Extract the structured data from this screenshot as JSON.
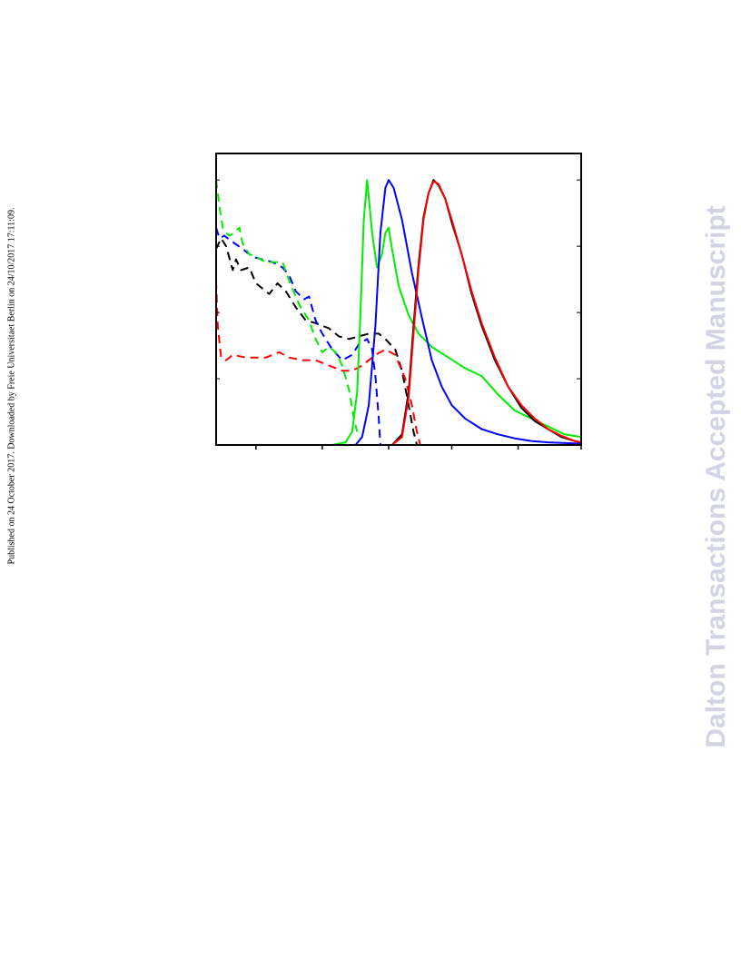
{
  "side_note": "Published on 24 October 2017. Downloaded by Freie Universitaet Berlin on 24/10/2017 17:11:09.",
  "watermark": "Dalton Transactions Accepted Manuscript",
  "chart_data": {
    "type": "line",
    "title": "",
    "xlabel": "",
    "ylabel": "",
    "xlim": [
      0,
      11
    ],
    "ylim": [
      0,
      1.1
    ],
    "x_ticks": [
      1.2,
      3.2,
      5.2,
      7.1,
      9.1,
      11.0
    ],
    "y_ticks": [
      0.25,
      0.5,
      0.75,
      1.0
    ],
    "tick_labels_shown": false,
    "legend": "none",
    "grid": false,
    "colors": {
      "black": "#000000",
      "red": "#ff0000",
      "blue": "#0000ff",
      "green": "#00ee00"
    },
    "series": [
      {
        "color": "#000000",
        "style": "dashed",
        "points": [
          [
            0,
            0.74
          ],
          [
            0.15,
            0.78
          ],
          [
            0.3,
            0.75
          ],
          [
            0.5,
            0.66
          ],
          [
            0.6,
            0.7
          ],
          [
            0.75,
            0.66
          ],
          [
            1,
            0.67
          ],
          [
            1.2,
            0.61
          ],
          [
            1.4,
            0.59
          ],
          [
            1.6,
            0.57
          ],
          [
            1.85,
            0.61
          ],
          [
            2.1,
            0.58
          ],
          [
            2.4,
            0.52
          ],
          [
            2.7,
            0.47
          ],
          [
            3.0,
            0.46
          ],
          [
            3.4,
            0.44
          ],
          [
            3.7,
            0.41
          ],
          [
            4.0,
            0.4
          ],
          [
            4.3,
            0.41
          ],
          [
            4.6,
            0.42
          ],
          [
            4.9,
            0.42
          ],
          [
            5.1,
            0.4
          ],
          [
            5.4,
            0.36
          ],
          [
            5.6,
            0.28
          ],
          [
            5.8,
            0.15
          ],
          [
            5.95,
            0.05
          ],
          [
            6.05,
            0.0
          ]
        ]
      },
      {
        "color": "#ff0000",
        "style": "dashed",
        "points": [
          [
            0,
            0.62
          ],
          [
            0.05,
            0.45
          ],
          [
            0.15,
            0.33
          ],
          [
            0.3,
            0.32
          ],
          [
            0.5,
            0.34
          ],
          [
            0.9,
            0.33
          ],
          [
            1.5,
            0.33
          ],
          [
            1.9,
            0.35
          ],
          [
            2.2,
            0.33
          ],
          [
            2.6,
            0.32
          ],
          [
            3.0,
            0.32
          ],
          [
            3.4,
            0.3
          ],
          [
            3.8,
            0.28
          ],
          [
            4.1,
            0.28
          ],
          [
            4.4,
            0.3
          ],
          [
            4.8,
            0.34
          ],
          [
            5.1,
            0.36
          ],
          [
            5.4,
            0.34
          ],
          [
            5.7,
            0.25
          ],
          [
            5.9,
            0.15
          ],
          [
            6.05,
            0.05
          ],
          [
            6.15,
            0.0
          ]
        ]
      },
      {
        "color": "#0000ff",
        "style": "dashed",
        "points": [
          [
            0,
            0.82
          ],
          [
            0.1,
            0.78
          ],
          [
            0.25,
            0.79
          ],
          [
            0.45,
            0.77
          ],
          [
            0.8,
            0.74
          ],
          [
            1.1,
            0.71
          ],
          [
            1.4,
            0.7
          ],
          [
            1.7,
            0.69
          ],
          [
            1.85,
            0.68
          ],
          [
            2.0,
            0.67
          ],
          [
            2.2,
            0.64
          ],
          [
            2.4,
            0.58
          ],
          [
            2.65,
            0.55
          ],
          [
            2.8,
            0.56
          ],
          [
            3.0,
            0.47
          ],
          [
            3.2,
            0.42
          ],
          [
            3.5,
            0.36
          ],
          [
            3.8,
            0.32
          ],
          [
            4.1,
            0.34
          ],
          [
            4.3,
            0.38
          ],
          [
            4.55,
            0.4
          ],
          [
            4.7,
            0.36
          ],
          [
            4.8,
            0.26
          ],
          [
            4.9,
            0.1
          ],
          [
            4.95,
            0.0
          ]
        ]
      },
      {
        "color": "#00ee00",
        "style": "dashed",
        "points": [
          [
            0,
            1.0
          ],
          [
            0.1,
            0.9
          ],
          [
            0.2,
            0.82
          ],
          [
            0.3,
            0.8
          ],
          [
            0.4,
            0.79
          ],
          [
            0.55,
            0.8
          ],
          [
            0.7,
            0.82
          ],
          [
            0.8,
            0.76
          ],
          [
            1.0,
            0.72
          ],
          [
            1.2,
            0.71
          ],
          [
            1.5,
            0.69
          ],
          [
            1.8,
            0.69
          ],
          [
            2.0,
            0.69
          ],
          [
            2.2,
            0.62
          ],
          [
            2.5,
            0.53
          ],
          [
            2.8,
            0.47
          ],
          [
            3.0,
            0.4
          ],
          [
            3.2,
            0.35
          ],
          [
            3.4,
            0.37
          ],
          [
            3.6,
            0.35
          ],
          [
            3.8,
            0.3
          ],
          [
            4.0,
            0.21
          ],
          [
            4.15,
            0.1
          ],
          [
            4.25,
            0.05
          ]
        ]
      },
      {
        "color": "#00ee00",
        "style": "solid",
        "points": [
          [
            2.5,
            0.0
          ],
          [
            3.5,
            0.0
          ],
          [
            3.9,
            0.01
          ],
          [
            4.1,
            0.05
          ],
          [
            4.25,
            0.2
          ],
          [
            4.35,
            0.5
          ],
          [
            4.45,
            0.85
          ],
          [
            4.55,
            1.0
          ],
          [
            4.7,
            0.8
          ],
          [
            4.85,
            0.67
          ],
          [
            5.0,
            0.72
          ],
          [
            5.1,
            0.8
          ],
          [
            5.2,
            0.82
          ],
          [
            5.3,
            0.74
          ],
          [
            5.5,
            0.6
          ],
          [
            5.8,
            0.49
          ],
          [
            6.1,
            0.42
          ],
          [
            6.5,
            0.37
          ],
          [
            7.0,
            0.33
          ],
          [
            7.5,
            0.29
          ],
          [
            8.0,
            0.26
          ],
          [
            8.5,
            0.19
          ],
          [
            9.0,
            0.13
          ],
          [
            9.5,
            0.1
          ],
          [
            10.0,
            0.07
          ],
          [
            10.5,
            0.04
          ],
          [
            11.0,
            0.03
          ]
        ]
      },
      {
        "color": "#0000ff",
        "style": "solid",
        "points": [
          [
            3.9,
            0.0
          ],
          [
            4.2,
            0.0
          ],
          [
            4.4,
            0.03
          ],
          [
            4.6,
            0.15
          ],
          [
            4.8,
            0.45
          ],
          [
            4.95,
            0.8
          ],
          [
            5.1,
            0.97
          ],
          [
            5.2,
            1.0
          ],
          [
            5.35,
            0.97
          ],
          [
            5.6,
            0.85
          ],
          [
            5.9,
            0.65
          ],
          [
            6.2,
            0.48
          ],
          [
            6.5,
            0.32
          ],
          [
            6.8,
            0.22
          ],
          [
            7.1,
            0.15
          ],
          [
            7.5,
            0.1
          ],
          [
            8.0,
            0.06
          ],
          [
            8.5,
            0.04
          ],
          [
            9.0,
            0.025
          ],
          [
            9.5,
            0.015
          ],
          [
            10.0,
            0.01
          ],
          [
            11.0,
            0.005
          ]
        ]
      },
      {
        "color": "#000000",
        "style": "solid",
        "points": [
          [
            5.3,
            0.0
          ],
          [
            5.6,
            0.04
          ],
          [
            5.8,
            0.2
          ],
          [
            5.95,
            0.45
          ],
          [
            6.1,
            0.68
          ],
          [
            6.25,
            0.86
          ],
          [
            6.4,
            0.95
          ],
          [
            6.55,
            1.0
          ],
          [
            6.7,
            0.98
          ],
          [
            6.9,
            0.93
          ],
          [
            7.1,
            0.84
          ],
          [
            7.4,
            0.72
          ],
          [
            7.7,
            0.57
          ],
          [
            8.0,
            0.45
          ],
          [
            8.4,
            0.32
          ],
          [
            8.8,
            0.22
          ],
          [
            9.2,
            0.14
          ],
          [
            9.6,
            0.09
          ],
          [
            10.0,
            0.06
          ],
          [
            10.4,
            0.03
          ],
          [
            10.8,
            0.015
          ],
          [
            11.0,
            0.01
          ]
        ]
      },
      {
        "color": "#ff0000",
        "style": "solid",
        "points": [
          [
            5.3,
            0.0
          ],
          [
            5.6,
            0.03
          ],
          [
            5.8,
            0.18
          ],
          [
            5.95,
            0.42
          ],
          [
            6.1,
            0.66
          ],
          [
            6.25,
            0.85
          ],
          [
            6.4,
            0.95
          ],
          [
            6.55,
            0.995
          ],
          [
            6.7,
            0.985
          ],
          [
            6.9,
            0.93
          ],
          [
            7.1,
            0.85
          ],
          [
            7.4,
            0.72
          ],
          [
            7.7,
            0.58
          ],
          [
            8.0,
            0.46
          ],
          [
            8.4,
            0.33
          ],
          [
            8.8,
            0.22
          ],
          [
            9.2,
            0.15
          ],
          [
            9.6,
            0.1
          ],
          [
            10.0,
            0.06
          ],
          [
            10.4,
            0.035
          ],
          [
            10.8,
            0.015
          ],
          [
            11.0,
            0.01
          ]
        ]
      }
    ]
  }
}
